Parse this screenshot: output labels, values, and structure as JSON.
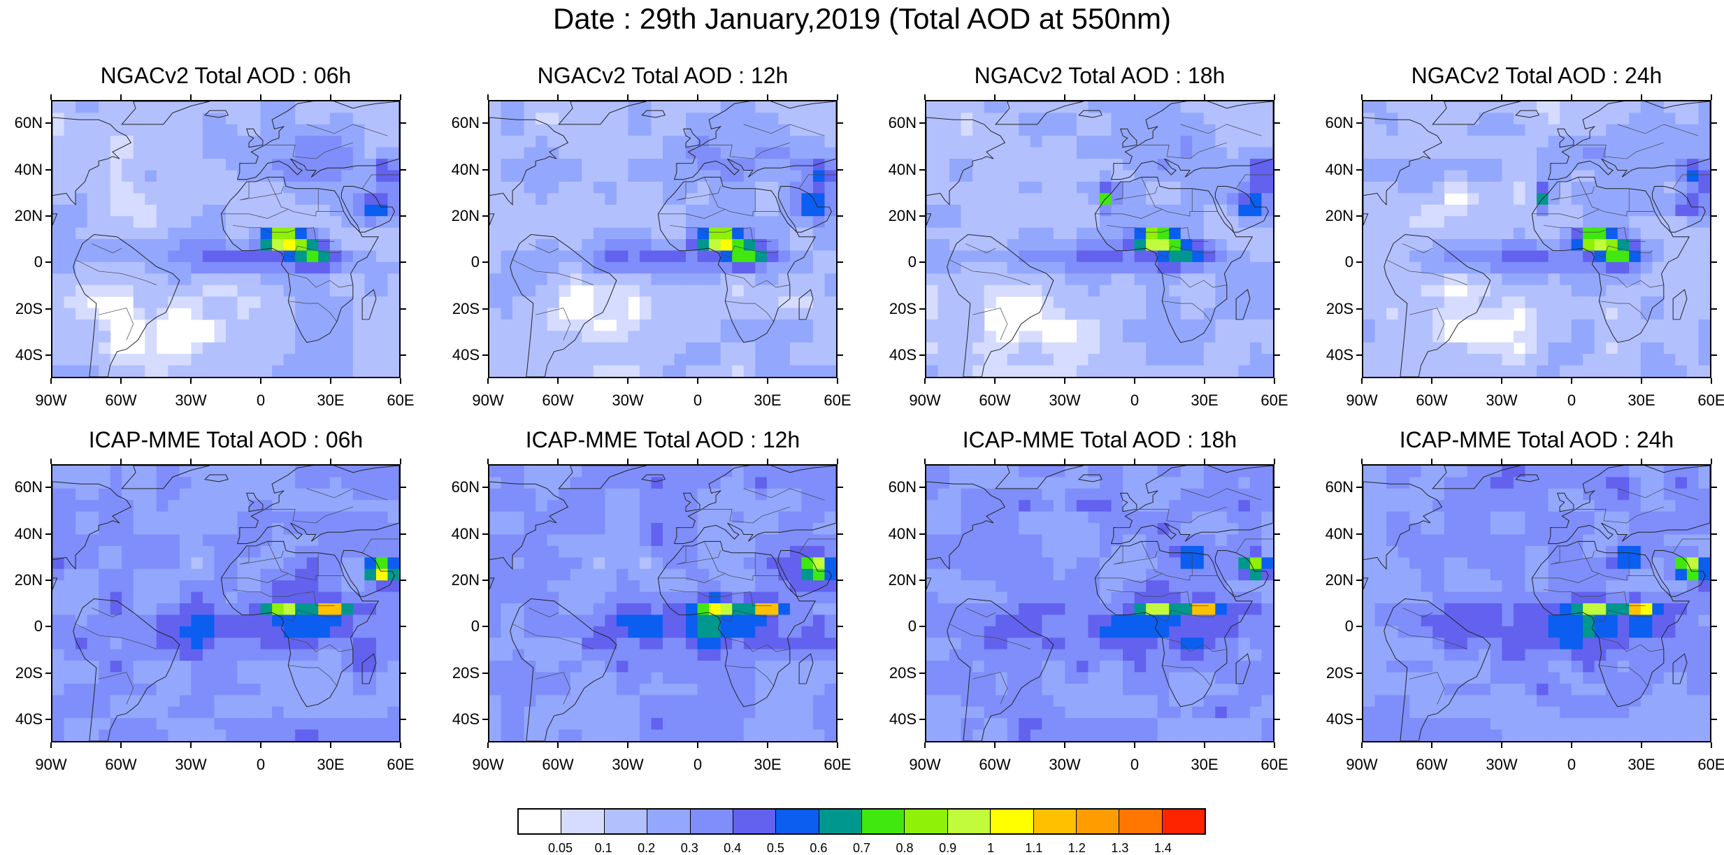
{
  "title": "Date : 29th January,2019 (Total AOD at 550nm)",
  "lat_labels": [
    "60N",
    "40N",
    "20N",
    "0",
    "20S",
    "40S"
  ],
  "lat_values": [
    60,
    40,
    20,
    0,
    -20,
    -40
  ],
  "lon_labels": [
    "90W",
    "60W",
    "30W",
    "0",
    "30E",
    "60E"
  ],
  "lon_values": [
    -90,
    -60,
    -30,
    0,
    30,
    60
  ],
  "extent": {
    "lon": [
      -90,
      60
    ],
    "lat": [
      -50,
      70
    ]
  },
  "panels": [
    {
      "title": "NGACv2 Total AOD : 06h",
      "model": "ngac",
      "hour": 6
    },
    {
      "title": "NGACv2 Total AOD : 12h",
      "model": "ngac",
      "hour": 12
    },
    {
      "title": "NGACv2 Total AOD : 18h",
      "model": "ngac",
      "hour": 18
    },
    {
      "title": "NGACv2 Total AOD : 24h",
      "model": "ngac",
      "hour": 24
    },
    {
      "title": "ICAP-MME Total AOD : 06h",
      "model": "icap",
      "hour": 6
    },
    {
      "title": "ICAP-MME Total AOD : 12h",
      "model": "icap",
      "hour": 12
    },
    {
      "title": "ICAP-MME Total AOD : 18h",
      "model": "icap",
      "hour": 18
    },
    {
      "title": "ICAP-MME Total AOD : 24h",
      "model": "icap",
      "hour": 24
    }
  ],
  "colorbar": {
    "labels": [
      "0.05",
      "0.1",
      "0.2",
      "0.3",
      "0.4",
      "0.5",
      "0.6",
      "0.7",
      "0.8",
      "0.9",
      "1",
      "1.1",
      "1.2",
      "1.3",
      "1.4"
    ],
    "colors": [
      "#ffffff",
      "#d5dcff",
      "#b3c0fe",
      "#93a7fd",
      "#7f8efa",
      "#6262ef",
      "#0b5ef0",
      "#00978e",
      "#40e80f",
      "#8ff008",
      "#c1fb3c",
      "#ffff00",
      "#ffc000",
      "#ff9c00",
      "#ff7700",
      "#ff2400"
    ]
  }
}
